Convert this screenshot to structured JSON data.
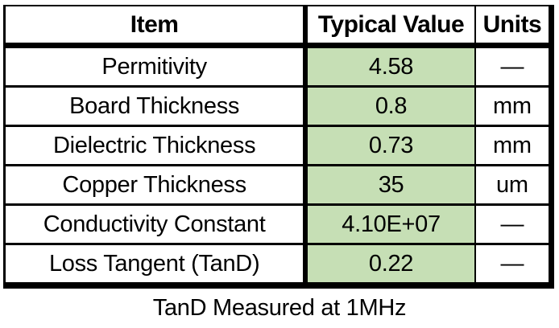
{
  "table": {
    "headers": {
      "item": "Item",
      "typical_value": "Typical Value",
      "units": "Units"
    },
    "rows": [
      {
        "item": "Permitivity",
        "typical_value": "4.58",
        "units": "—"
      },
      {
        "item": "Board Thickness",
        "typical_value": "0.8",
        "units": "mm"
      },
      {
        "item": "Dielectric Thickness",
        "typical_value": "0.73",
        "units": "mm"
      },
      {
        "item": "Copper Thickness",
        "typical_value": "35",
        "units": "um"
      },
      {
        "item": "Conductivity Constant",
        "typical_value": "4.10E+07",
        "units": "—"
      },
      {
        "item": "Loss Tangent (TanD)",
        "typical_value": "0.22",
        "units": "—"
      }
    ],
    "colors": {
      "value_cell_bg": "#c6dfb5",
      "border": "#000000"
    }
  },
  "caption": "TanD Measured at 1MHz"
}
